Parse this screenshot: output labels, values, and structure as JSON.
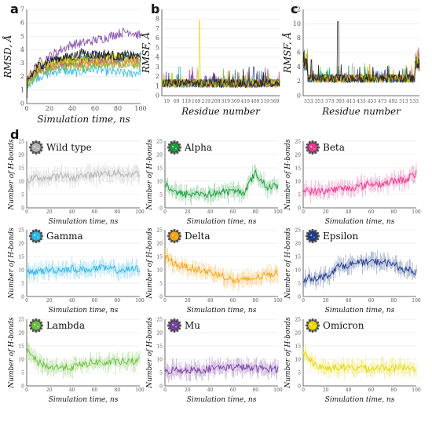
{
  "panels": {
    "a": "a",
    "b": "b",
    "c": "c",
    "d": "d"
  },
  "chart_data": [
    {
      "id": "a",
      "type": "line",
      "xlabel": "Simulation time, ns",
      "ylabel": "RMSD, Å",
      "xlim": [
        0,
        100
      ],
      "ylim": [
        0,
        7
      ],
      "xticks": [
        0,
        20,
        40,
        60,
        80,
        100
      ],
      "yticks": [
        0,
        1,
        2,
        3,
        4,
        5,
        6,
        7
      ],
      "series": [
        {
          "color": "#b3b3b3",
          "y": [
            1.6,
            2.6,
            2.9,
            3.0,
            3.2,
            3.1,
            3.3,
            3.2,
            3.4,
            3.3,
            3.2
          ]
        },
        {
          "color": "#1a9e3a",
          "y": [
            1.5,
            2.4,
            2.8,
            3.1,
            3.0,
            3.3,
            3.2,
            3.4,
            3.3,
            3.5,
            3.4
          ]
        },
        {
          "color": "#e8368f",
          "y": [
            1.6,
            2.5,
            2.7,
            3.0,
            3.1,
            3.0,
            3.2,
            3.1,
            3.3,
            3.2,
            3.3
          ]
        },
        {
          "color": "#29b6e8",
          "y": [
            1.4,
            2.0,
            2.2,
            2.5,
            2.3,
            2.4,
            2.6,
            2.4,
            2.3,
            2.2,
            2.4
          ]
        },
        {
          "color": "#f5821f",
          "y": [
            1.5,
            2.3,
            2.6,
            2.9,
            3.0,
            2.8,
            3.1,
            3.0,
            2.9,
            3.1,
            3.0
          ]
        },
        {
          "color": "#1e3a8a",
          "y": [
            1.7,
            2.6,
            3.0,
            3.3,
            3.5,
            3.4,
            3.6,
            3.5,
            3.4,
            3.6,
            3.5
          ]
        },
        {
          "color": "#6abf3c",
          "y": [
            1.5,
            2.2,
            2.5,
            2.7,
            2.8,
            2.7,
            2.9,
            2.8,
            3.0,
            2.9,
            2.8
          ]
        },
        {
          "color": "#7b3fa6",
          "y": [
            1.8,
            3.0,
            3.5,
            4.0,
            4.4,
            4.5,
            4.7,
            4.9,
            5.2,
            5.4,
            5.0
          ]
        },
        {
          "color": "#e6d800",
          "y": [
            1.6,
            2.7,
            3.0,
            3.2,
            3.3,
            3.2,
            3.4,
            3.3,
            3.5,
            3.4,
            3.3
          ]
        },
        {
          "color": "#111111",
          "y": [
            1.6,
            2.8,
            3.2,
            3.4,
            3.5,
            3.8,
            3.6,
            3.7,
            3.5,
            3.6,
            3.4
          ]
        }
      ]
    },
    {
      "id": "b",
      "type": "line",
      "xlabel": "Residue number",
      "ylabel": "RMSF, Å",
      "ylim": [
        0,
        9
      ],
      "yticks": [
        0,
        1,
        2,
        3,
        4,
        5,
        6,
        7,
        8,
        9
      ],
      "xticks": [
        "19",
        "69",
        "119",
        "169",
        "219",
        "269",
        "319",
        "369",
        "419",
        "469",
        "519",
        "569"
      ],
      "spikes": [
        {
          "position": 0.32,
          "height": 7.9,
          "color": "#e6d800"
        },
        {
          "position": 0.78,
          "height": 3.0,
          "color": "#1e3a8a"
        },
        {
          "position": 0.15,
          "height": 3.0,
          "color": "#29b6e8"
        }
      ]
    },
    {
      "id": "c",
      "type": "line",
      "xlabel": "Residue number",
      "ylabel": "RMSF, Å",
      "ylim": [
        0,
        12
      ],
      "yticks": [
        0,
        2,
        4,
        6,
        8,
        10,
        12
      ],
      "xticks": [
        "333",
        "353",
        "373",
        "393",
        "413",
        "433",
        "453",
        "473",
        "492",
        "513",
        "533"
      ],
      "spikes": [
        {
          "position": 0.3,
          "height": 10.3,
          "color": "#111111"
        },
        {
          "position": 0.07,
          "height": 5.0,
          "color": "#111111"
        }
      ]
    },
    {
      "id": "d",
      "type": "line",
      "xlabel": "Simulation time, ns",
      "ylabel": "Number of H-bonds",
      "xlim": [
        0,
        100
      ],
      "ylim": [
        0,
        25
      ],
      "xticks": [
        0,
        20,
        40,
        60,
        80,
        100
      ],
      "yticks": [
        0,
        5,
        10,
        15,
        20,
        25
      ],
      "variants": [
        {
          "name": "Wild type",
          "color": "#b3b3b3",
          "y": [
            10.5,
            11.5,
            11,
            12,
            11.5,
            12,
            12.5,
            13,
            13,
            12.5,
            13
          ]
        },
        {
          "name": "Alpha",
          "color": "#1a9e3a",
          "y": [
            9,
            5.5,
            5,
            5.5,
            5,
            6,
            6,
            6,
            13,
            8,
            8
          ]
        },
        {
          "name": "Beta",
          "color": "#e8368f",
          "y": [
            7,
            6,
            6.5,
            7,
            7.5,
            8,
            9,
            9,
            10,
            10.5,
            13
          ]
        },
        {
          "name": "Gamma",
          "color": "#29b6e8",
          "y": [
            8.5,
            9.5,
            10,
            10,
            10.5,
            10,
            10.5,
            10.5,
            10,
            10,
            10.5
          ]
        },
        {
          "name": "Delta",
          "color": "#f5a30f",
          "y": [
            15,
            12,
            11,
            10,
            9,
            8,
            6,
            6,
            7,
            8,
            9
          ]
        },
        {
          "name": "Epsilon",
          "color": "#1e3a8a",
          "y": [
            6.5,
            7,
            7.5,
            11,
            12,
            12.5,
            13,
            13,
            12,
            10,
            9
          ]
        },
        {
          "name": "Lambda",
          "color": "#6abf3c",
          "y": [
            13,
            9,
            7,
            7,
            7,
            8,
            9,
            8.5,
            9,
            9,
            9.5
          ]
        },
        {
          "name": "Mu",
          "color": "#7b3fa6",
          "y": [
            5.5,
            6,
            6,
            6,
            6.5,
            7,
            7,
            7,
            6.5,
            6.5,
            6.5
          ]
        },
        {
          "name": "Omicron",
          "color": "#e6d800",
          "y": [
            13,
            8,
            6.5,
            7,
            6.5,
            7,
            6.5,
            7,
            6.5,
            7,
            7
          ]
        }
      ]
    }
  ]
}
